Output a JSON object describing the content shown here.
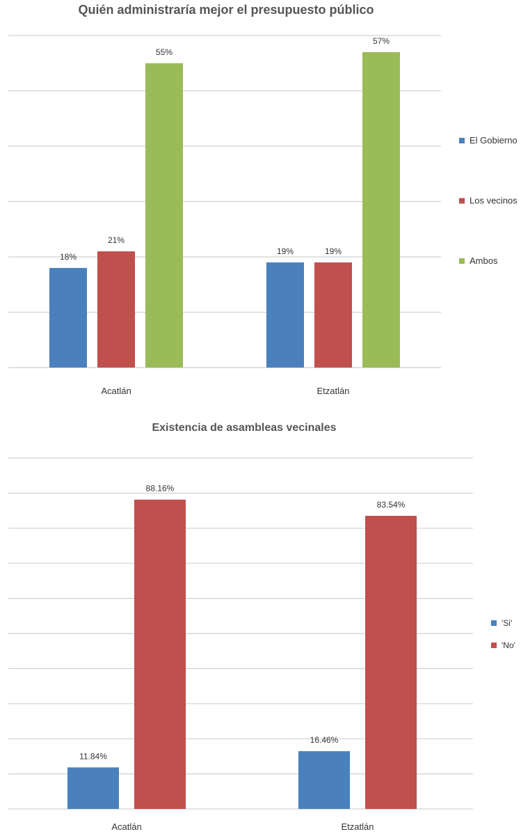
{
  "chart_data": [
    {
      "type": "bar",
      "title": "Quién administraría mejor el presupuesto público",
      "categories": [
        "Acatlán",
        "Etzatlán"
      ],
      "ylim": [
        0,
        60
      ],
      "grid": true,
      "legend_position": "right",
      "series": [
        {
          "name": "El Gobierno",
          "color": "#4a81bd",
          "values": [
            18,
            19
          ],
          "labels": [
            "18%",
            "19%"
          ]
        },
        {
          "name": "Los vecinos",
          "color": "#c0504d",
          "values": [
            21,
            19
          ],
          "labels": [
            "21%",
            "19%"
          ]
        },
        {
          "name": "Ambos",
          "color": "#9bbb59",
          "values": [
            55,
            57
          ],
          "labels": [
            "55%",
            "57%"
          ]
        }
      ]
    },
    {
      "type": "bar",
      "title": "Existencia de asambleas vecinales",
      "categories": [
        "Acatlán",
        "Etzatlán"
      ],
      "ylim": [
        0,
        100
      ],
      "grid": true,
      "legend_position": "right",
      "series": [
        {
          "name": "'Si'",
          "color": "#4a81bd",
          "values": [
            11.84,
            16.46
          ],
          "labels": [
            "11.84%",
            "16.46%"
          ]
        },
        {
          "name": "'No'",
          "color": "#c0504d",
          "values": [
            88.16,
            83.54
          ],
          "labels": [
            "88.16%",
            "83.54%"
          ]
        }
      ]
    }
  ]
}
